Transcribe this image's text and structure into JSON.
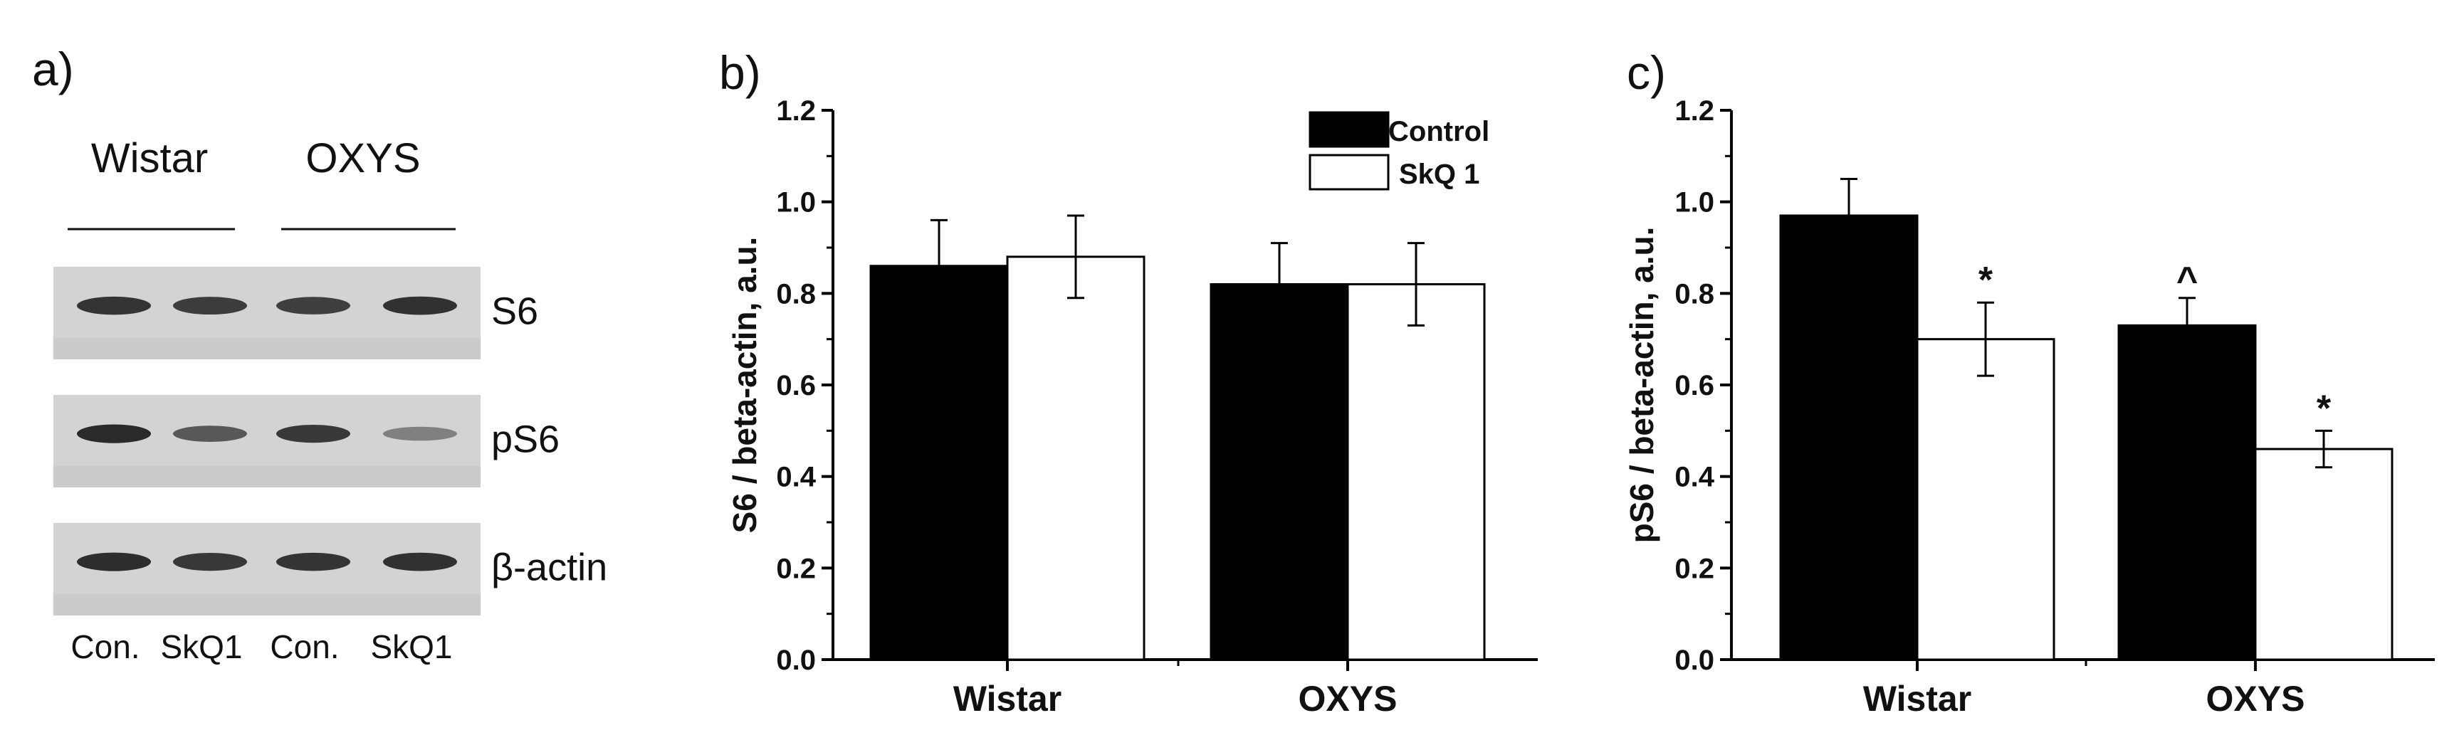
{
  "panel_a": {
    "letter": "a)",
    "group_labels": [
      "Wistar",
      "OXYS"
    ],
    "rows": [
      {
        "label": "S6",
        "intensities": [
          0.82,
          0.78,
          0.76,
          0.84
        ]
      },
      {
        "label": "pS6",
        "intensities": [
          0.88,
          0.62,
          0.8,
          0.4
        ]
      },
      {
        "label": "β-actin",
        "intensities": [
          0.86,
          0.8,
          0.82,
          0.84
        ]
      }
    ],
    "lane_labels": [
      "Con.",
      "SkQ1",
      "Con.",
      "SkQ1"
    ]
  },
  "chart_data": [
    {
      "type": "bar",
      "panel": "b)",
      "categories": [
        "Wistar",
        "OXYS"
      ],
      "series": [
        {
          "name": "Control",
          "color": "#000000",
          "values": [
            0.86,
            0.82
          ],
          "errors": [
            0.1,
            0.09
          ]
        },
        {
          "name": "SkQ 1",
          "color": "#ffffff",
          "values": [
            0.88,
            0.82
          ],
          "errors": [
            0.09,
            0.09
          ]
        }
      ],
      "ylabel": "S6 / beta-actin, a.u.",
      "ylim": [
        0,
        1.2
      ],
      "yticks": [
        "0.0",
        "0.2",
        "0.4",
        "0.6",
        "0.8",
        "1.0",
        "1.2"
      ],
      "legend": "top-right",
      "annotations": [],
      "grid": false
    },
    {
      "type": "bar",
      "panel": "c)",
      "categories": [
        "Wistar",
        "OXYS"
      ],
      "series": [
        {
          "name": "Control",
          "color": "#000000",
          "values": [
            0.97,
            0.73
          ],
          "errors": [
            0.08,
            0.06
          ]
        },
        {
          "name": "SkQ 1",
          "color": "#ffffff",
          "values": [
            0.7,
            0.46
          ],
          "errors": [
            0.08,
            0.04
          ]
        }
      ],
      "ylabel": "pS6 / beta-actin, a.u.",
      "ylim": [
        0,
        1.2
      ],
      "yticks": [
        "0.0",
        "0.2",
        "0.4",
        "0.6",
        "0.8",
        "1.0",
        "1.2"
      ],
      "legend": "none",
      "annotations": [
        {
          "category": 0,
          "series": 1,
          "text": "*"
        },
        {
          "category": 1,
          "series": 0,
          "text": "^"
        },
        {
          "category": 1,
          "series": 1,
          "text": "*"
        }
      ],
      "grid": false
    }
  ]
}
